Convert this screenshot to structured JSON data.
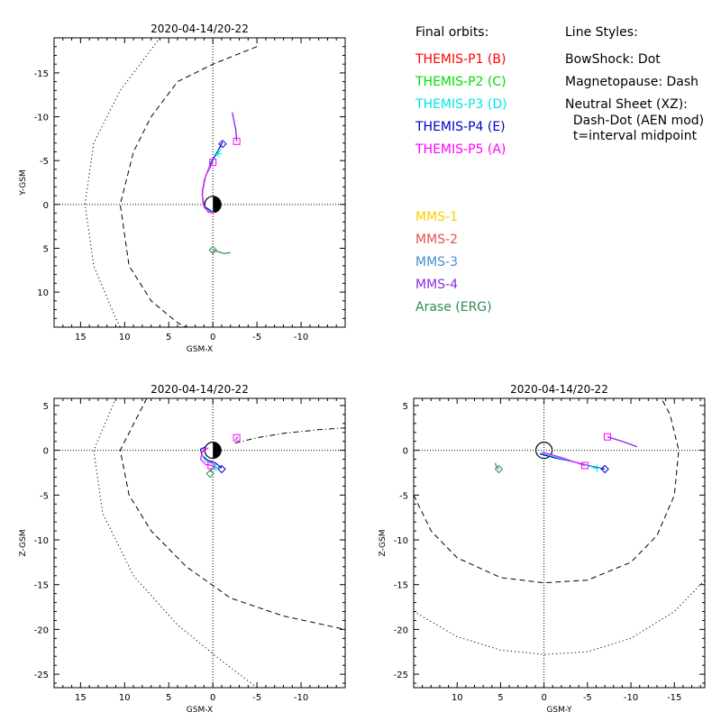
{
  "colors": {
    "themis_p1": "#ff0000",
    "themis_p2": "#00dd00",
    "themis_p3": "#00e5e5",
    "themis_p4": "#0000c8",
    "themis_p5": "#ff00ff",
    "mms_1": "#ffcc00",
    "mms_2": "#e05050",
    "mms_3": "#4a8ad0",
    "mms_4": "#8a2be2",
    "arase": "#2e8b57",
    "axis": "#000000"
  },
  "legend": {
    "orbits_title": "Final orbits:",
    "orbits": [
      {
        "label": "THEMIS-P1 (B)",
        "color_key": "themis_p1"
      },
      {
        "label": "THEMIS-P2 (C)",
        "color_key": "themis_p2"
      },
      {
        "label": "THEMIS-P3 (D)",
        "color_key": "themis_p3"
      },
      {
        "label": "THEMIS-P4 (E)",
        "color_key": "themis_p4"
      },
      {
        "label": "THEMIS-P5 (A)",
        "color_key": "themis_p5"
      }
    ],
    "other_missions": [
      {
        "label": "MMS-1",
        "color_key": "mms_1"
      },
      {
        "label": "MMS-2",
        "color_key": "mms_2"
      },
      {
        "label": "MMS-3",
        "color_key": "mms_3"
      },
      {
        "label": "MMS-4",
        "color_key": "mms_4"
      },
      {
        "label": "Arase (ERG)",
        "color_key": "arase"
      }
    ],
    "styles_title": "Line Styles:",
    "styles": [
      "BowShock: Dot",
      "Magnetopause: Dash",
      "Neutral Sheet (XZ):",
      "  Dash-Dot (AEN mod)",
      "  t=interval midpoint"
    ]
  },
  "chart_data": [
    {
      "type": "line",
      "title": "2020-04-14/20-22",
      "xlabel": "GSM-X",
      "ylabel": "Y-GSM",
      "xlim": [
        18,
        -15
      ],
      "ylim": [
        14,
        -19
      ],
      "xticks": [
        15,
        10,
        5,
        0,
        -5,
        -10
      ],
      "yticks": [
        -15,
        -10,
        -5,
        0,
        5,
        10
      ],
      "grid": false,
      "earth_style": "day-night",
      "boundaries": [
        {
          "name": "BowShock",
          "style": "dot",
          "points": [
            [
              6,
              -19
            ],
            [
              10.5,
              -13
            ],
            [
              13.5,
              -7
            ],
            [
              14.5,
              0
            ],
            [
              13.5,
              7
            ],
            [
              11,
              13
            ],
            [
              10.5,
              14
            ]
          ]
        },
        {
          "name": "Magnetopause",
          "style": "dash",
          "points": [
            [
              -5,
              -18
            ],
            [
              0,
              -16
            ],
            [
              4,
              -14
            ],
            [
              7,
              -10
            ],
            [
              9,
              -6
            ],
            [
              10.5,
              0
            ],
            [
              9.5,
              7
            ],
            [
              7,
              11
            ],
            [
              4,
              13.5
            ],
            [
              3,
              14
            ]
          ]
        }
      ],
      "series": [
        {
          "color_key": "themis_p5",
          "points": [
            [
              -2.2,
              -10.5
            ],
            [
              -2.6,
              -8.5
            ],
            [
              -2.7,
              -7.2
            ]
          ],
          "marker": "square",
          "marker_at": [
            -2.7,
            -7.2
          ]
        },
        {
          "color_key": "mms_4",
          "points": [
            [
              -2.2,
              -10.5
            ],
            [
              -2.6,
              -8.5
            ],
            [
              -2.7,
              -7.2
            ]
          ]
        },
        {
          "color_key": "themis_p4",
          "points": [
            [
              -1.1,
              -7.1
            ],
            [
              -0.5,
              -6.0
            ],
            [
              0.2,
              -4.8
            ],
            [
              0.9,
              -3.0
            ],
            [
              1.2,
              -1.2
            ],
            [
              1.0,
              0.2
            ],
            [
              0.1,
              0.8
            ]
          ],
          "marker": "diamond",
          "marker_at": [
            -1.1,
            -6.9
          ]
        },
        {
          "color_key": "themis_p3",
          "points": [
            [
              -0.9,
              -6.3
            ],
            [
              -0.3,
              -5.5
            ],
            [
              0.4,
              -4.2
            ],
            [
              1.0,
              -2.8
            ],
            [
              1.2,
              -1.0
            ],
            [
              1.0,
              0.4
            ],
            [
              0.2,
              0.9
            ]
          ],
          "marker": "plus",
          "marker_at": [
            -0.6,
            -5.8
          ]
        },
        {
          "color_key": "themis_p5",
          "points": [
            [
              0.0,
              -4.8
            ],
            [
              0.8,
              -3.3
            ],
            [
              1.2,
              -1.6
            ],
            [
              1.1,
              0.0
            ],
            [
              0.5,
              0.9
            ],
            [
              -0.2,
              0.9
            ]
          ],
          "marker": "square",
          "marker_at": [
            0.0,
            -4.8
          ]
        },
        {
          "color_key": "arase",
          "points": [
            [
              0.0,
              5.2
            ],
            [
              -0.6,
              5.4
            ],
            [
              -1.3,
              5.6
            ],
            [
              -2.0,
              5.5
            ]
          ],
          "marker": "diamond",
          "marker_at": [
            0.0,
            5.2
          ]
        }
      ]
    },
    {
      "type": "line",
      "title": "2020-04-14/20-22",
      "xlabel": "GSM-X",
      "ylabel": "Z-GSM",
      "xlim": [
        18,
        -15
      ],
      "ylim": [
        -26.5,
        5.8
      ],
      "xticks": [
        15,
        10,
        5,
        0,
        -5,
        -10
      ],
      "yticks": [
        5,
        0,
        -5,
        -10,
        -15,
        -20,
        -25
      ],
      "grid": false,
      "earth_style": "day-night",
      "boundaries": [
        {
          "name": "BowShock",
          "style": "dot",
          "points": [
            [
              11,
              5.8
            ],
            [
              13.5,
              0
            ],
            [
              12.5,
              -7
            ],
            [
              9,
              -14
            ],
            [
              4,
              -19.5
            ],
            [
              -1,
              -23.5
            ],
            [
              -5,
              -26.5
            ]
          ]
        },
        {
          "name": "Magnetopause",
          "style": "dash",
          "points": [
            [
              7.5,
              5.8
            ],
            [
              10.5,
              0
            ],
            [
              9.5,
              -5
            ],
            [
              7,
              -9
            ],
            [
              3,
              -13
            ],
            [
              -2,
              -16.5
            ],
            [
              -8,
              -18.5
            ],
            [
              -15,
              -20
            ]
          ]
        },
        {
          "name": "NeutralSheet",
          "style": "dashdot",
          "points": [
            [
              -2.5,
              0.8
            ],
            [
              -5,
              1.4
            ],
            [
              -8,
              1.9
            ],
            [
              -12,
              2.3
            ],
            [
              -15,
              2.5
            ]
          ]
        }
      ],
      "series": [
        {
          "color_key": "themis_p5",
          "points": [
            [
              -2.6,
              1.2
            ],
            [
              -2.8,
              1.5
            ]
          ],
          "marker": "square",
          "marker_at": [
            -2.7,
            1.4
          ]
        },
        {
          "color_key": "mms_4",
          "points": [
            [
              -2.6,
              1.2
            ],
            [
              -2.8,
              1.5
            ]
          ]
        },
        {
          "color_key": "themis_p4",
          "points": [
            [
              -1.0,
              -2.0
            ],
            [
              -0.3,
              -1.4
            ],
            [
              0.6,
              -1.1
            ],
            [
              1.2,
              -0.6
            ],
            [
              1.4,
              0.1
            ],
            [
              0.8,
              0.4
            ]
          ],
          "marker": "diamond",
          "marker_at": [
            -1.0,
            -2.1
          ]
        },
        {
          "color_key": "themis_p3",
          "points": [
            [
              -0.6,
              -2.2
            ],
            [
              0.0,
              -1.5
            ],
            [
              0.8,
              -1.2
            ],
            [
              1.3,
              -0.5
            ]
          ],
          "marker": "plus",
          "marker_at": [
            -0.3,
            -1.9
          ]
        },
        {
          "color_key": "themis_p5",
          "points": [
            [
              0.0,
              -1.7
            ],
            [
              0.8,
              -1.6
            ],
            [
              1.4,
              -1.0
            ],
            [
              1.2,
              -0.2
            ],
            [
              0.5,
              0.3
            ]
          ],
          "marker": "square",
          "marker_at": [
            0.2,
            -1.7
          ]
        },
        {
          "color_key": "arase",
          "points": [
            [
              0.3,
              -2.4
            ],
            [
              0.1,
              -2.0
            ]
          ],
          "marker": "diamond",
          "marker_at": [
            0.3,
            -2.6
          ]
        }
      ]
    },
    {
      "type": "line",
      "title": "2020-04-14/20-22",
      "xlabel": "GSM-Y",
      "ylabel": "Z-GSM",
      "xlim": [
        15,
        -18.5
      ],
      "ylim": [
        -26.5,
        5.8
      ],
      "xticks": [
        10,
        5,
        0,
        -5,
        -10,
        -15
      ],
      "yticks": [
        5,
        0,
        -5,
        -10,
        -15,
        -20,
        -25
      ],
      "grid": false,
      "earth_style": "circle",
      "boundaries": [
        {
          "name": "BowShock",
          "style": "dot",
          "points": [
            [
              15,
              -18
            ],
            [
              10,
              -20.8
            ],
            [
              5,
              -22.3
            ],
            [
              0,
              -22.8
            ],
            [
              -5,
              -22.5
            ],
            [
              -10,
              -21
            ],
            [
              -15,
              -18
            ],
            [
              -18.5,
              -14.5
            ]
          ]
        },
        {
          "name": "Magnetopause",
          "style": "dash",
          "points": [
            [
              15,
              -5
            ],
            [
              13,
              -9
            ],
            [
              10,
              -12
            ],
            [
              5,
              -14.2
            ],
            [
              0,
              -14.8
            ],
            [
              -5,
              -14.5
            ],
            [
              -10,
              -12.5
            ],
            [
              -13,
              -9.5
            ],
            [
              -15,
              -5
            ],
            [
              -15.5,
              0
            ],
            [
              -14.5,
              4
            ],
            [
              -13.5,
              5.8
            ]
          ]
        }
      ],
      "series": [
        {
          "color_key": "themis_p5",
          "points": [
            [
              -7.3,
              1.5
            ],
            [
              -9.0,
              1.0
            ],
            [
              -10.7,
              0.4
            ]
          ],
          "marker": "square",
          "marker_at": [
            -7.3,
            1.5
          ]
        },
        {
          "color_key": "mms_4",
          "points": [
            [
              -7.3,
              1.5
            ],
            [
              -9.0,
              1.0
            ],
            [
              -10.7,
              0.4
            ]
          ]
        },
        {
          "color_key": "themis_p4",
          "points": [
            [
              0.5,
              -0.4
            ],
            [
              -1.5,
              -0.9
            ],
            [
              -3.5,
              -1.3
            ],
            [
              -5.5,
              -1.8
            ],
            [
              -7.0,
              -2.1
            ]
          ],
          "marker": "diamond",
          "marker_at": [
            -7.0,
            -2.1
          ]
        },
        {
          "color_key": "themis_p3",
          "points": [
            [
              0.4,
              -0.3
            ],
            [
              -1.5,
              -0.8
            ],
            [
              -3.5,
              -1.3
            ],
            [
              -6.1,
              -2.0
            ]
          ],
          "marker": "plus",
          "marker_at": [
            -6.1,
            -2.0
          ]
        },
        {
          "color_key": "themis_p5",
          "points": [
            [
              0.2,
              -0.2
            ],
            [
              -2.0,
              -0.8
            ],
            [
              -4.7,
              -1.7
            ]
          ],
          "marker": "square",
          "marker_at": [
            -4.7,
            -1.7
          ]
        },
        {
          "color_key": "arase",
          "points": [
            [
              5.6,
              -1.4
            ],
            [
              5.5,
              -1.8
            ],
            [
              5.2,
              -2.1
            ]
          ],
          "marker": "diamond",
          "marker_at": [
            5.2,
            -2.1
          ]
        }
      ]
    }
  ]
}
